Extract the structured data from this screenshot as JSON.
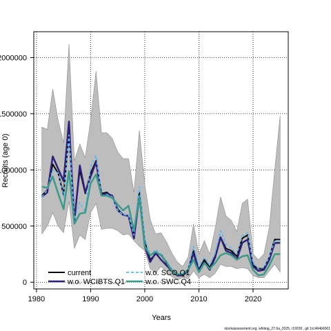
{
  "chart_data": {
    "type": "line",
    "xlabel": "Years",
    "ylabel": "Recruits (age 0)",
    "xlim": [
      1979.5,
      2026.5
    ],
    "ylim": [
      -60000,
      2230000
    ],
    "x_ticks": [
      1980,
      1990,
      2000,
      2010,
      2020
    ],
    "y_ticks": [
      0,
      500000,
      1000000,
      1500000,
      2000000
    ],
    "y_tick_labels": [
      "0",
      "500000",
      "1000000",
      "1500000",
      "2000000"
    ],
    "grid": true,
    "grid_x": [
      1980,
      1990,
      2000,
      2010,
      2020
    ],
    "grid_y": [
      0,
      500000,
      1000000,
      1500000,
      2000000
    ],
    "legend_position": "bottom-left",
    "x": [
      1981,
      1982,
      1983,
      1984,
      1985,
      1986,
      1987,
      1988,
      1989,
      1990,
      1991,
      1992,
      1993,
      1994,
      1995,
      1996,
      1997,
      1998,
      1999,
      2000,
      2001,
      2002,
      2003,
      2004,
      2005,
      2006,
      2007,
      2008,
      2009,
      2010,
      2011,
      2012,
      2013,
      2014,
      2015,
      2016,
      2017,
      2018,
      2019,
      2020,
      2021,
      2022,
      2023,
      2024,
      2025
    ],
    "confidence_band": {
      "lower": [
        430000,
        500000,
        620000,
        500000,
        440000,
        720000,
        300000,
        420000,
        380000,
        620000,
        700000,
        470000,
        480000,
        480000,
        460000,
        420000,
        430000,
        370000,
        320000,
        280000,
        120000,
        80000,
        140000,
        90000,
        50000,
        20000,
        40000,
        30000,
        100000,
        40000,
        70000,
        40000,
        80000,
        160000,
        140000,
        140000,
        120000,
        130000,
        120000,
        60000,
        40000,
        40000,
        100000,
        160000,
        90000
      ],
      "upper": [
        1380000,
        1360000,
        1720000,
        1440000,
        1240000,
        2120000,
        1080000,
        1230000,
        1110000,
        1440000,
        1880000,
        1330000,
        1330000,
        1280000,
        1160000,
        1100000,
        1100000,
        800000,
        1350000,
        870000,
        560000,
        430000,
        440000,
        360000,
        260000,
        180000,
        140000,
        220000,
        520000,
        250000,
        370000,
        250000,
        480000,
        760000,
        590000,
        550000,
        450000,
        700000,
        740000,
        250000,
        200000,
        250000,
        490000,
        1000000,
        1480000
      ]
    },
    "series": [
      {
        "name": "current",
        "color": "#000000",
        "dash": "solid",
        "width": 2,
        "values": [
          770000,
          820000,
          1050000,
          970000,
          780000,
          1330000,
          560000,
          1000000,
          790000,
          970000,
          1080000,
          790000,
          800000,
          760000,
          650000,
          600000,
          590000,
          420000,
          800000,
          360000,
          200000,
          250000,
          250000,
          170000,
          110000,
          70000,
          70000,
          110000,
          280000,
          110000,
          200000,
          130000,
          230000,
          400000,
          300000,
          280000,
          230000,
          390000,
          420000,
          150000,
          120000,
          120000,
          220000,
          380000,
          380000
        ]
      },
      {
        "name": "w.o. WCIBTS.Q1",
        "color": "#2f1f7a",
        "dash": "solid",
        "width": 2.5,
        "values": [
          760000,
          800000,
          1120000,
          1010000,
          900000,
          1430000,
          540000,
          1040000,
          800000,
          940000,
          1070000,
          780000,
          790000,
          770000,
          640000,
          600000,
          590000,
          390000,
          770000,
          320000,
          180000,
          260000,
          200000,
          150000,
          100000,
          60000,
          60000,
          100000,
          260000,
          100000,
          180000,
          110000,
          220000,
          400000,
          280000,
          260000,
          200000,
          350000,
          380000,
          140000,
          100000,
          110000,
          200000,
          350000,
          350000
        ]
      },
      {
        "name": "w.o. SCO.Q1",
        "color": "#5eb8ec",
        "dash": "dashed",
        "width": 1.8,
        "values": [
          760000,
          820000,
          1000000,
          970000,
          760000,
          1310000,
          560000,
          710000,
          630000,
          1030000,
          1130000,
          770000,
          780000,
          760000,
          640000,
          600000,
          600000,
          420000,
          850000,
          390000,
          230000,
          290000,
          250000,
          190000,
          110000,
          70000,
          80000,
          120000,
          320000,
          140000,
          220000,
          150000,
          260000,
          460000,
          340000,
          300000,
          250000,
          410000,
          440000,
          170000,
          120000,
          130000,
          230000,
          370000,
          370000
        ]
      },
      {
        "name": "w.o. SWC.Q4",
        "color": "#3c9a8a",
        "dash": "solid",
        "width": 2.5,
        "values": [
          850000,
          840000,
          940000,
          790000,
          650000,
          990000,
          520000,
          610000,
          620000,
          880000,
          960000,
          770000,
          770000,
          750000,
          690000,
          640000,
          680000,
          460000,
          760000,
          320000,
          240000,
          270000,
          240000,
          180000,
          100000,
          70000,
          70000,
          110000,
          200000,
          90000,
          170000,
          120000,
          170000,
          240000,
          260000,
          240000,
          200000,
          230000,
          240000,
          110000,
          60000,
          70000,
          150000,
          250000,
          250000
        ]
      }
    ]
  },
  "footer": "stockassessment.org, whiting_27.6a_2025, r19209 , git 1cc464b6061"
}
